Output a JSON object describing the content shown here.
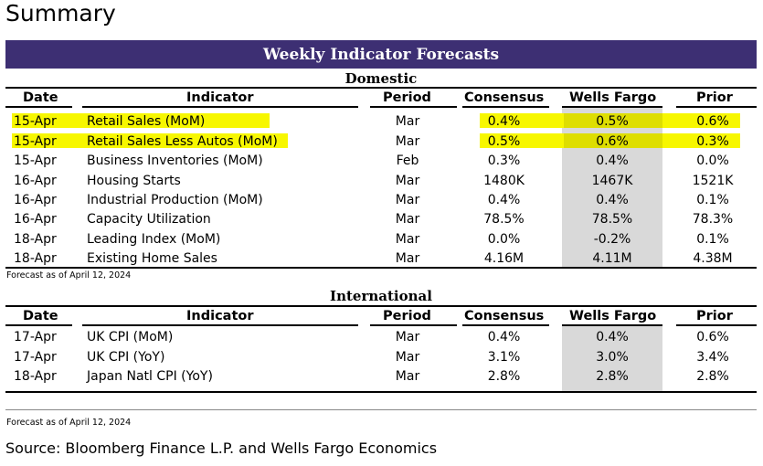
{
  "page": {
    "title": "Summary",
    "banner": "Weekly Indicator Forecasts"
  },
  "headers": {
    "date": "Date",
    "indicator": "Indicator",
    "period": "Period",
    "consensus": "Consensus",
    "wells_fargo": "Wells Fargo",
    "prior": "Prior"
  },
  "domestic": {
    "title": "Domestic",
    "rows": [
      {
        "date": "15-Apr",
        "indicator": "Retail Sales (MoM)",
        "period": "Mar",
        "consensus": "0.4%",
        "wells_fargo": "0.5%",
        "prior": "0.6%",
        "highlighted": true
      },
      {
        "date": "15-Apr",
        "indicator": "Retail Sales Less Autos (MoM)",
        "period": "Mar",
        "consensus": "0.5%",
        "wells_fargo": "0.6%",
        "prior": "0.3%",
        "highlighted": true
      },
      {
        "date": "15-Apr",
        "indicator": "Business Inventories (MoM)",
        "period": "Feb",
        "consensus": "0.3%",
        "wells_fargo": "0.4%",
        "prior": "0.0%",
        "highlighted": false
      },
      {
        "date": "16-Apr",
        "indicator": "Housing Starts",
        "period": "Mar",
        "consensus": "1480K",
        "wells_fargo": "1467K",
        "prior": "1521K",
        "highlighted": false
      },
      {
        "date": "16-Apr",
        "indicator": "Industrial Production (MoM)",
        "period": "Mar",
        "consensus": "0.4%",
        "wells_fargo": "0.4%",
        "prior": "0.1%",
        "highlighted": false
      },
      {
        "date": "16-Apr",
        "indicator": "Capacity Utilization",
        "period": "Mar",
        "consensus": "78.5%",
        "wells_fargo": "78.5%",
        "prior": "78.3%",
        "highlighted": false
      },
      {
        "date": "18-Apr",
        "indicator": "Leading Index (MoM)",
        "period": "Mar",
        "consensus": "0.0%",
        "wells_fargo": "-0.2%",
        "prior": "0.1%",
        "highlighted": false
      },
      {
        "date": "18-Apr",
        "indicator": "Existing Home Sales",
        "period": "Mar",
        "consensus": "4.16M",
        "wells_fargo": "4.11M",
        "prior": "4.38M",
        "highlighted": false
      }
    ],
    "note": "Forecast as of April 12, 2024"
  },
  "international": {
    "title": "International",
    "rows": [
      {
        "date": "17-Apr",
        "indicator": "UK CPI (MoM)",
        "period": "Mar",
        "consensus": "0.4%",
        "wells_fargo": "0.4%",
        "prior": "0.6%"
      },
      {
        "date": "17-Apr",
        "indicator": "UK CPI (YoY)",
        "period": "Mar",
        "consensus": "3.1%",
        "wells_fargo": "3.0%",
        "prior": "3.4%"
      },
      {
        "date": "18-Apr",
        "indicator": "Japan Natl CPI (YoY)",
        "period": "Mar",
        "consensus": "2.8%",
        "wells_fargo": "2.8%",
        "prior": "2.8%"
      }
    ],
    "note": "Forecast as of April 12, 2024"
  },
  "source": "Source: Bloomberg Finance L.P. and Wells Fargo Economics",
  "colors": {
    "banner": "#3d2f73",
    "highlight": "#f7f700",
    "wells_fargo_shade": "#d9d9d9"
  }
}
